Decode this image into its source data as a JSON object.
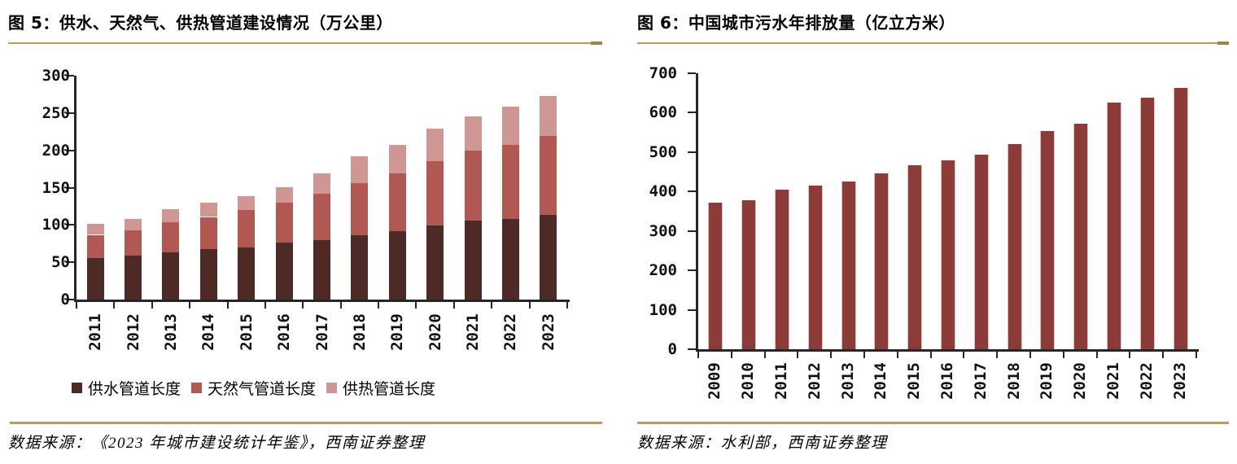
{
  "colors": {
    "accent_rule": "#b79b61",
    "accent_rule_tip": "#a28442",
    "axis": "#262626",
    "fig5_dark": "#4d2a26",
    "fig5_mid": "#b15853",
    "fig5_light": "#ce9794",
    "fig6_bar": "#8c3b38",
    "fig6_bar_edge": "#d9c4c2"
  },
  "chart_data": [
    {
      "type": "bar",
      "stacked": true,
      "title": "图 5：供水、天然气、供热管道建设情况（万公里）",
      "categories": [
        "2011",
        "2012",
        "2013",
        "2014",
        "2015",
        "2016",
        "2017",
        "2018",
        "2019",
        "2020",
        "2021",
        "2022",
        "2023"
      ],
      "series": [
        {
          "name": "供水管道长度",
          "color": "#4d2a26",
          "values": [
            56,
            59,
            63,
            68,
            70,
            76,
            80,
            86,
            92,
            99,
            106,
            108,
            113
          ]
        },
        {
          "name": "天然气管道长度",
          "color": "#b15853",
          "values": [
            31,
            34,
            41,
            43,
            50,
            54,
            62,
            70,
            77,
            86,
            94,
            99,
            106
          ]
        },
        {
          "name": "供热管道长度",
          "color": "#ce9794",
          "values": [
            14,
            15,
            17,
            19,
            19,
            21,
            27,
            36,
            38,
            44,
            46,
            51,
            53
          ]
        }
      ],
      "xlabel": "",
      "ylabel": "",
      "ylim": [
        0,
        300
      ],
      "yticks": [
        0,
        50,
        100,
        150,
        200,
        250,
        300
      ],
      "grid": false,
      "legend_position": "bottom",
      "source": "数据来源：《2023 年城市建设统计年鉴》，西南证券整理"
    },
    {
      "type": "bar",
      "stacked": false,
      "title": "图 6：中国城市污水年排放量（亿立方米）",
      "categories": [
        "2009",
        "2010",
        "2011",
        "2012",
        "2013",
        "2014",
        "2015",
        "2016",
        "2017",
        "2018",
        "2019",
        "2020",
        "2021",
        "2022",
        "2023"
      ],
      "series": [
        {
          "name": "中国城市污水年排放量",
          "color": "#8c3b38",
          "values": [
            371,
            377,
            404,
            416,
            426,
            445,
            467,
            480,
            493,
            521,
            554,
            571,
            625,
            639,
            662
          ]
        }
      ],
      "xlabel": "",
      "ylabel": "",
      "ylim": [
        0,
        700
      ],
      "yticks": [
        0,
        100,
        200,
        300,
        400,
        500,
        600,
        700
      ],
      "grid": false,
      "legend_position": "none",
      "source": "数据来源：水利部，西南证券整理"
    }
  ]
}
